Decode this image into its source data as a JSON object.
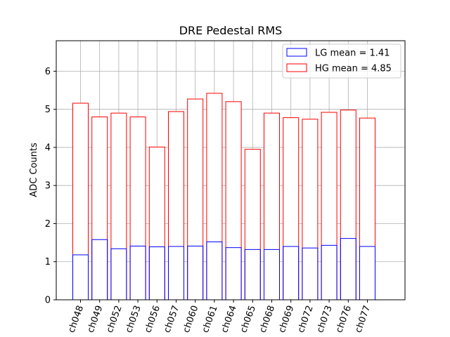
{
  "chart_data": {
    "type": "bar",
    "title": "DRE Pedestal RMS",
    "xlabel": "",
    "ylabel": "ADC Counts",
    "ylim": [
      0,
      6.8
    ],
    "yticks": [
      0,
      1,
      2,
      3,
      4,
      5,
      6
    ],
    "grid": true,
    "legend_position": "top-right",
    "categories": [
      "ch048",
      "ch049",
      "ch052",
      "ch053",
      "ch056",
      "ch057",
      "ch060",
      "ch061",
      "ch064",
      "ch065",
      "ch068",
      "ch069",
      "ch072",
      "ch073",
      "ch076",
      "ch077"
    ],
    "series": [
      {
        "name": "LG mean = 1.41",
        "color": "#0000ff",
        "style": "outline",
        "values": [
          1.18,
          1.58,
          1.34,
          1.41,
          1.39,
          1.4,
          1.41,
          1.52,
          1.37,
          1.32,
          1.32,
          1.4,
          1.36,
          1.43,
          1.61,
          1.4
        ]
      },
      {
        "name": "HG mean = 4.85",
        "color": "#ff0000",
        "style": "outline",
        "values": [
          5.16,
          4.8,
          4.9,
          4.8,
          4.01,
          4.94,
          5.27,
          5.42,
          5.2,
          3.95,
          4.9,
          4.78,
          4.74,
          4.92,
          4.98,
          4.77
        ]
      }
    ]
  }
}
